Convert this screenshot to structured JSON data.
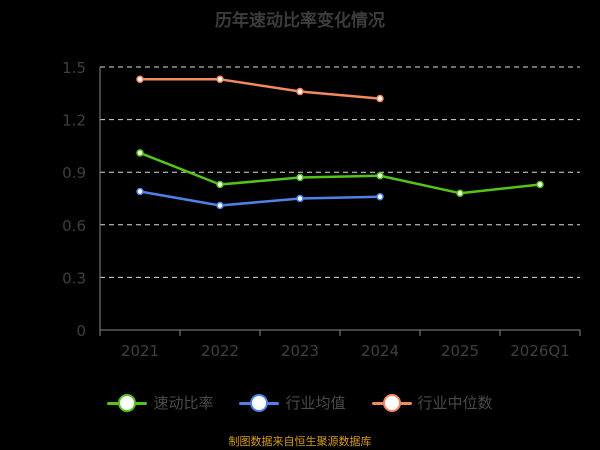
{
  "title": "历年速动比率变化情况",
  "source": "制图数据来自恒生聚源数据库",
  "colors": {
    "background": "#000000",
    "grid": "#dcdcdc",
    "axis": "#888888",
    "tick_text": "#3f3f3f"
  },
  "chart_data": {
    "type": "line",
    "title": "历年速动比率变化情况",
    "categories": [
      "2021",
      "2022",
      "2023",
      "2024",
      "2025",
      "2026Q1"
    ],
    "ylim": [
      0,
      1.5
    ],
    "yticks": [
      "0",
      "0.3",
      "0.6",
      "0.9",
      "1.2",
      "1.5"
    ],
    "grid": true,
    "legend_position": "bottom-center",
    "series": [
      {
        "name": "速动比率",
        "color": "#52c41a",
        "values": [
          1.01,
          0.83,
          0.87,
          0.88,
          0.78,
          0.83
        ]
      },
      {
        "name": "行业均值",
        "color": "#4f81e8",
        "values": [
          0.79,
          0.71,
          0.75,
          0.76,
          null,
          null
        ]
      },
      {
        "name": "行业中位数",
        "color": "#f4895f",
        "values": [
          1.43,
          1.43,
          1.36,
          1.32,
          null,
          null
        ]
      }
    ]
  }
}
